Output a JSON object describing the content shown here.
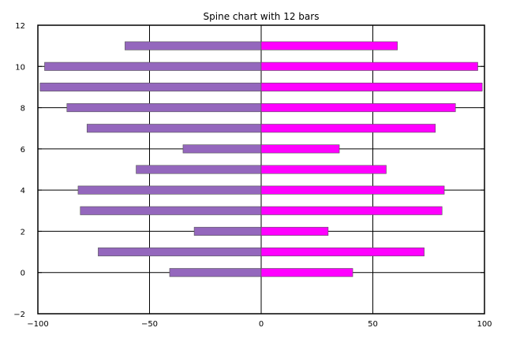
{
  "chart_data": {
    "type": "bar",
    "orientation": "horizontal",
    "title": "Spine chart with 12 bars",
    "xlabel": "",
    "ylabel": "",
    "xlim": [
      -100,
      100
    ],
    "ylim": [
      -2,
      12
    ],
    "xticks": [
      -100,
      -50,
      0,
      50,
      100
    ],
    "xtick_labels": [
      "−100",
      "−50",
      "0",
      "50",
      "100"
    ],
    "yticks": [
      -2,
      0,
      2,
      4,
      6,
      8,
      10,
      12
    ],
    "ytick_labels": [
      "−2",
      "0",
      "2",
      "4",
      "6",
      "8",
      "10",
      "12"
    ],
    "grid": true,
    "categories": [
      0,
      1,
      2,
      3,
      4,
      5,
      6,
      7,
      8,
      9,
      10,
      11
    ],
    "series": [
      {
        "color": "#9467bd",
        "values": [
          -41,
          -73,
          -30,
          -81,
          -82,
          -56,
          -35,
          -78,
          -87,
          -99,
          -97,
          -61
        ]
      },
      {
        "color": "#ff00ff",
        "values": [
          41,
          73,
          30,
          81,
          82,
          56,
          35,
          78,
          87,
          99,
          97,
          61
        ]
      }
    ]
  }
}
